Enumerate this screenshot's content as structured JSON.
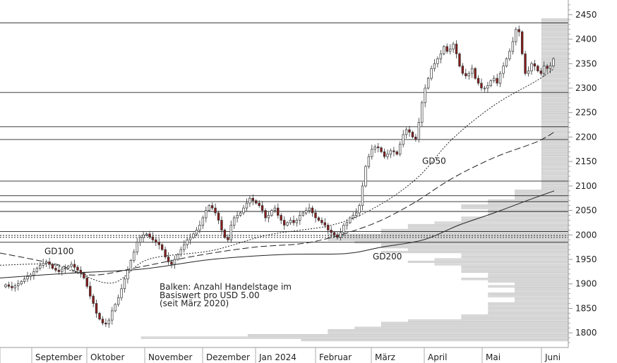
{
  "chart_data": {
    "type": "candlestick",
    "price_range": [
      1770,
      2480
    ],
    "y_ticks": [
      1800,
      1850,
      1900,
      1950,
      2000,
      2050,
      2100,
      2150,
      2200,
      2250,
      2300,
      2350,
      2400,
      2450
    ],
    "y_tick_labels": [
      "1800",
      "1850",
      "1900",
      "1950",
      "2000",
      "2050",
      "2100",
      "2150",
      "2200",
      "2250",
      "2300",
      "2350",
      "2400",
      "2450"
    ],
    "x_range": [
      0,
      805
    ],
    "month_labels": [
      {
        "label": "September",
        "at": 50
      },
      {
        "label": "Oktober",
        "at": 128
      },
      {
        "label": "November",
        "at": 210
      },
      {
        "label": "Dezember",
        "at": 292
      },
      {
        "label": "Jan 2024",
        "at": 367
      },
      {
        "label": "Februar",
        "at": 452
      },
      {
        "label": "März",
        "at": 531
      },
      {
        "label": "April",
        "at": 606
      },
      {
        "label": "Mai",
        "at": 688
      },
      {
        "label": "Juni",
        "at": 772
      }
    ],
    "closes": [
      1898,
      1895,
      1892,
      1896,
      1900,
      1905,
      1910,
      1915,
      1918,
      1925,
      1932,
      1938,
      1942,
      1945,
      1940,
      1932,
      1928,
      1925,
      1930,
      1932,
      1936,
      1940,
      1934,
      1928,
      1922,
      1912,
      1895,
      1875,
      1860,
      1840,
      1828,
      1820,
      1818,
      1826,
      1845,
      1858,
      1872,
      1890,
      1910,
      1928,
      1948,
      1965,
      1985,
      1995,
      2000,
      2002,
      1996,
      1990,
      1985,
      1980,
      1970,
      1955,
      1945,
      1940,
      1950,
      1960,
      1970,
      1980,
      1990,
      1995,
      2002,
      2010,
      2020,
      2035,
      2050,
      2060,
      2055,
      2045,
      2030,
      2010,
      1995,
      1990,
      2020,
      2035,
      2040,
      2045,
      2055,
      2065,
      2075,
      2070,
      2065,
      2060,
      2050,
      2035,
      2040,
      2050,
      2055,
      2040,
      2030,
      2020,
      2025,
      2030,
      2025,
      2030,
      2040,
      2045,
      2050,
      2055,
      2045,
      2035,
      2030,
      2025,
      2020,
      2010,
      2005,
      2000,
      1995,
      2005,
      2020,
      2025,
      2035,
      2040,
      2045,
      2060,
      2100,
      2140,
      2160,
      2175,
      2180,
      2178,
      2170,
      2160,
      2165,
      2172,
      2170,
      2165,
      2185,
      2205,
      2215,
      2210,
      2200,
      2195,
      2230,
      2270,
      2300,
      2320,
      2340,
      2350,
      2360,
      2370,
      2385,
      2375,
      2380,
      2390,
      2370,
      2345,
      2330,
      2325,
      2330,
      2340,
      2320,
      2310,
      2300,
      2300,
      2305,
      2315,
      2320,
      2310,
      2330,
      2345,
      2360,
      2375,
      2395,
      2420,
      2415,
      2370,
      2330,
      2335,
      2350,
      2345,
      2335,
      2330,
      2345,
      2340,
      2345,
      2360
    ],
    "moving_averages": [
      {
        "name": "GD50",
        "style": "dotted",
        "points": [
          [
            0,
            1938
          ],
          [
            70,
            1940
          ],
          [
            105,
            1925
          ],
          [
            160,
            1902
          ],
          [
            210,
            1950
          ],
          [
            300,
            1968
          ],
          [
            380,
            2000
          ],
          [
            470,
            2020
          ],
          [
            530,
            2055
          ],
          [
            590,
            2115
          ],
          [
            640,
            2195
          ],
          [
            700,
            2265
          ],
          [
            760,
            2315
          ],
          [
            785,
            2340
          ]
        ]
      },
      {
        "name": "",
        "style": "dashed",
        "points": [
          [
            0,
            1963
          ],
          [
            80,
            1940
          ],
          [
            130,
            1918
          ],
          [
            200,
            1935
          ],
          [
            280,
            1958
          ],
          [
            360,
            1975
          ],
          [
            440,
            1985
          ],
          [
            520,
            2018
          ],
          [
            580,
            2060
          ],
          [
            640,
            2115
          ],
          [
            700,
            2158
          ],
          [
            760,
            2190
          ],
          [
            785,
            2210
          ]
        ]
      },
      {
        "name": "",
        "style": "solid",
        "points": [
          [
            0,
            1912
          ],
          [
            100,
            1922
          ],
          [
            200,
            1930
          ],
          [
            300,
            1950
          ],
          [
            400,
            1960
          ],
          [
            490,
            1962
          ],
          [
            540,
            1975
          ],
          [
            600,
            1990
          ],
          [
            650,
            2020
          ],
          [
            700,
            2045
          ],
          [
            750,
            2072
          ],
          [
            785,
            2090
          ]
        ]
      }
    ],
    "horizontal_lines": [
      {
        "price": 1985,
        "style": "solid"
      },
      {
        "price": 1995,
        "style": "dotted"
      },
      {
        "price": 1999,
        "style": "dotted"
      },
      {
        "price": 2007,
        "style": "solid"
      },
      {
        "price": 2048,
        "style": "solid"
      },
      {
        "price": 2068,
        "style": "solid"
      },
      {
        "price": 2080,
        "style": "solid"
      },
      {
        "price": 2110,
        "style": "solid"
      },
      {
        "price": 2195,
        "style": "solid"
      },
      {
        "price": 2221,
        "style": "solid"
      },
      {
        "price": 2291,
        "style": "solid"
      },
      {
        "price": 2433,
        "style": "solid"
      }
    ],
    "volume_profile_step": 5,
    "volume_profile": [
      [
        1785,
        10
      ],
      [
        1790,
        16
      ],
      [
        1795,
        12
      ],
      [
        1800,
        9
      ],
      [
        1805,
        9
      ],
      [
        1810,
        8
      ],
      [
        1815,
        7
      ],
      [
        1820,
        7
      ],
      [
        1825,
        6
      ],
      [
        1830,
        4
      ],
      [
        1835,
        4
      ],
      [
        1840,
        3
      ],
      [
        1845,
        3
      ],
      [
        1850,
        3
      ],
      [
        1855,
        3
      ],
      [
        1860,
        3
      ],
      [
        1865,
        2
      ],
      [
        1870,
        2
      ],
      [
        1875,
        3
      ],
      [
        1880,
        3
      ],
      [
        1885,
        2
      ],
      [
        1890,
        2
      ],
      [
        1895,
        3
      ],
      [
        1900,
        2
      ],
      [
        1905,
        3
      ],
      [
        1910,
        4
      ],
      [
        1915,
        3
      ],
      [
        1920,
        3
      ],
      [
        1925,
        4
      ],
      [
        1930,
        4
      ],
      [
        1935,
        4
      ],
      [
        1940,
        5
      ],
      [
        1945,
        6
      ],
      [
        1950,
        5
      ],
      [
        1955,
        4
      ],
      [
        1960,
        4
      ],
      [
        1965,
        7
      ],
      [
        1970,
        6
      ],
      [
        1975,
        7
      ],
      [
        1980,
        7
      ],
      [
        1985,
        8
      ],
      [
        1990,
        9
      ],
      [
        1995,
        9
      ],
      [
        2000,
        9
      ],
      [
        2005,
        7
      ],
      [
        2010,
        7
      ],
      [
        2015,
        6
      ],
      [
        2020,
        6
      ],
      [
        2025,
        5
      ],
      [
        2030,
        4
      ],
      [
        2035,
        4
      ],
      [
        2040,
        3
      ],
      [
        2045,
        3
      ],
      [
        2050,
        3
      ],
      [
        2055,
        4
      ],
      [
        2060,
        4
      ],
      [
        2065,
        3
      ],
      [
        2070,
        3
      ],
      [
        2075,
        2
      ],
      [
        2080,
        2
      ],
      [
        2085,
        2
      ],
      [
        2090,
        2
      ],
      [
        2095,
        1
      ],
      [
        2100,
        1
      ],
      [
        2105,
        1
      ],
      [
        2110,
        1
      ],
      [
        2115,
        1
      ],
      [
        2120,
        1
      ],
      [
        2125,
        1
      ],
      [
        2130,
        1
      ],
      [
        2135,
        1
      ],
      [
        2140,
        1
      ],
      [
        2145,
        1
      ],
      [
        2150,
        1
      ],
      [
        2155,
        1
      ],
      [
        2160,
        1
      ],
      [
        2165,
        1
      ],
      [
        2170,
        1
      ],
      [
        2175,
        1
      ],
      [
        2180,
        1
      ],
      [
        2185,
        1
      ],
      [
        2190,
        1
      ],
      [
        2195,
        1
      ],
      [
        2200,
        1
      ],
      [
        2205,
        1
      ],
      [
        2210,
        1
      ],
      [
        2215,
        1
      ],
      [
        2220,
        1
      ],
      [
        2225,
        1
      ],
      [
        2230,
        1
      ],
      [
        2235,
        1
      ],
      [
        2240,
        1
      ],
      [
        2245,
        1
      ],
      [
        2250,
        1
      ],
      [
        2255,
        1
      ],
      [
        2260,
        1
      ],
      [
        2265,
        1
      ],
      [
        2270,
        1
      ],
      [
        2275,
        1
      ],
      [
        2280,
        1
      ],
      [
        2285,
        1
      ],
      [
        2290,
        1
      ],
      [
        2295,
        1
      ],
      [
        2300,
        1
      ],
      [
        2305,
        1
      ],
      [
        2310,
        1
      ],
      [
        2315,
        1
      ],
      [
        2320,
        1
      ],
      [
        2325,
        1
      ],
      [
        2330,
        1
      ],
      [
        2335,
        1
      ],
      [
        2340,
        1
      ],
      [
        2345,
        1
      ],
      [
        2350,
        1
      ],
      [
        2355,
        1
      ],
      [
        2360,
        1
      ],
      [
        2365,
        1
      ],
      [
        2370,
        1
      ],
      [
        2375,
        1
      ],
      [
        2380,
        1
      ],
      [
        2385,
        1
      ],
      [
        2390,
        1
      ],
      [
        2395,
        1
      ],
      [
        2400,
        1
      ],
      [
        2405,
        1
      ],
      [
        2410,
        1
      ],
      [
        2415,
        1
      ],
      [
        2420,
        1
      ],
      [
        2425,
        1
      ],
      [
        2430,
        1
      ],
      [
        2435,
        1
      ],
      [
        2440,
        1
      ]
    ],
    "annotations": [
      {
        "text": "GD100",
        "price": 1961,
        "at": 63
      },
      {
        "text": "GD50",
        "price": 2145,
        "at": 598
      },
      {
        "text": "GD200",
        "price": 1950,
        "at": 528
      },
      {
        "text": "Balken: Anzahl Handelstage im",
        "price": 1888,
        "at": 226
      },
      {
        "text": "Basiswert pro USD 5.00",
        "price": 1871,
        "at": 226
      },
      {
        "text": "(seit März 2020)",
        "price": 1854,
        "at": 226
      }
    ],
    "colors": {
      "up_candle": "#ffffff",
      "down_candle": "#8b1a1a",
      "candle_outline": "#333333",
      "volume_bar": "#d9d9d9",
      "volume_bar_edge": "#bcbcbc",
      "line": "#222222",
      "axis": "#9a9a9a"
    }
  }
}
